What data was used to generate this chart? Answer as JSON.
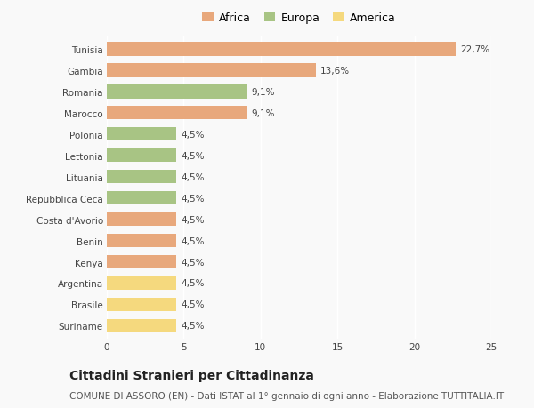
{
  "categories": [
    "Tunisia",
    "Gambia",
    "Romania",
    "Marocco",
    "Polonia",
    "Lettonia",
    "Lituania",
    "Repubblica Ceca",
    "Costa d'Avorio",
    "Benin",
    "Kenya",
    "Argentina",
    "Brasile",
    "Suriname"
  ],
  "values": [
    22.7,
    13.6,
    9.1,
    9.1,
    4.5,
    4.5,
    4.5,
    4.5,
    4.5,
    4.5,
    4.5,
    4.5,
    4.5,
    4.5
  ],
  "labels": [
    "22,7%",
    "13,6%",
    "9,1%",
    "9,1%",
    "4,5%",
    "4,5%",
    "4,5%",
    "4,5%",
    "4,5%",
    "4,5%",
    "4,5%",
    "4,5%",
    "4,5%",
    "4,5%"
  ],
  "colors": [
    "#e8a87c",
    "#e8a87c",
    "#a8c484",
    "#e8a87c",
    "#a8c484",
    "#a8c484",
    "#a8c484",
    "#a8c484",
    "#e8a87c",
    "#e8a87c",
    "#e8a87c",
    "#f5d97e",
    "#f5d97e",
    "#f5d97e"
  ],
  "legend_labels": [
    "Africa",
    "Europa",
    "America"
  ],
  "legend_colors": [
    "#e8a87c",
    "#a8c484",
    "#f5d97e"
  ],
  "xlim": [
    0,
    25
  ],
  "xticks": [
    0,
    5,
    10,
    15,
    20,
    25
  ],
  "title": "Cittadini Stranieri per Cittadinanza",
  "subtitle": "COMUNE DI ASSORO (EN) - Dati ISTAT al 1° gennaio di ogni anno - Elaborazione TUTTITALIA.IT",
  "background_color": "#f9f9f9",
  "bar_height": 0.65,
  "label_fontsize": 7.5,
  "tick_fontsize": 7.5,
  "title_fontsize": 10,
  "subtitle_fontsize": 7.5
}
